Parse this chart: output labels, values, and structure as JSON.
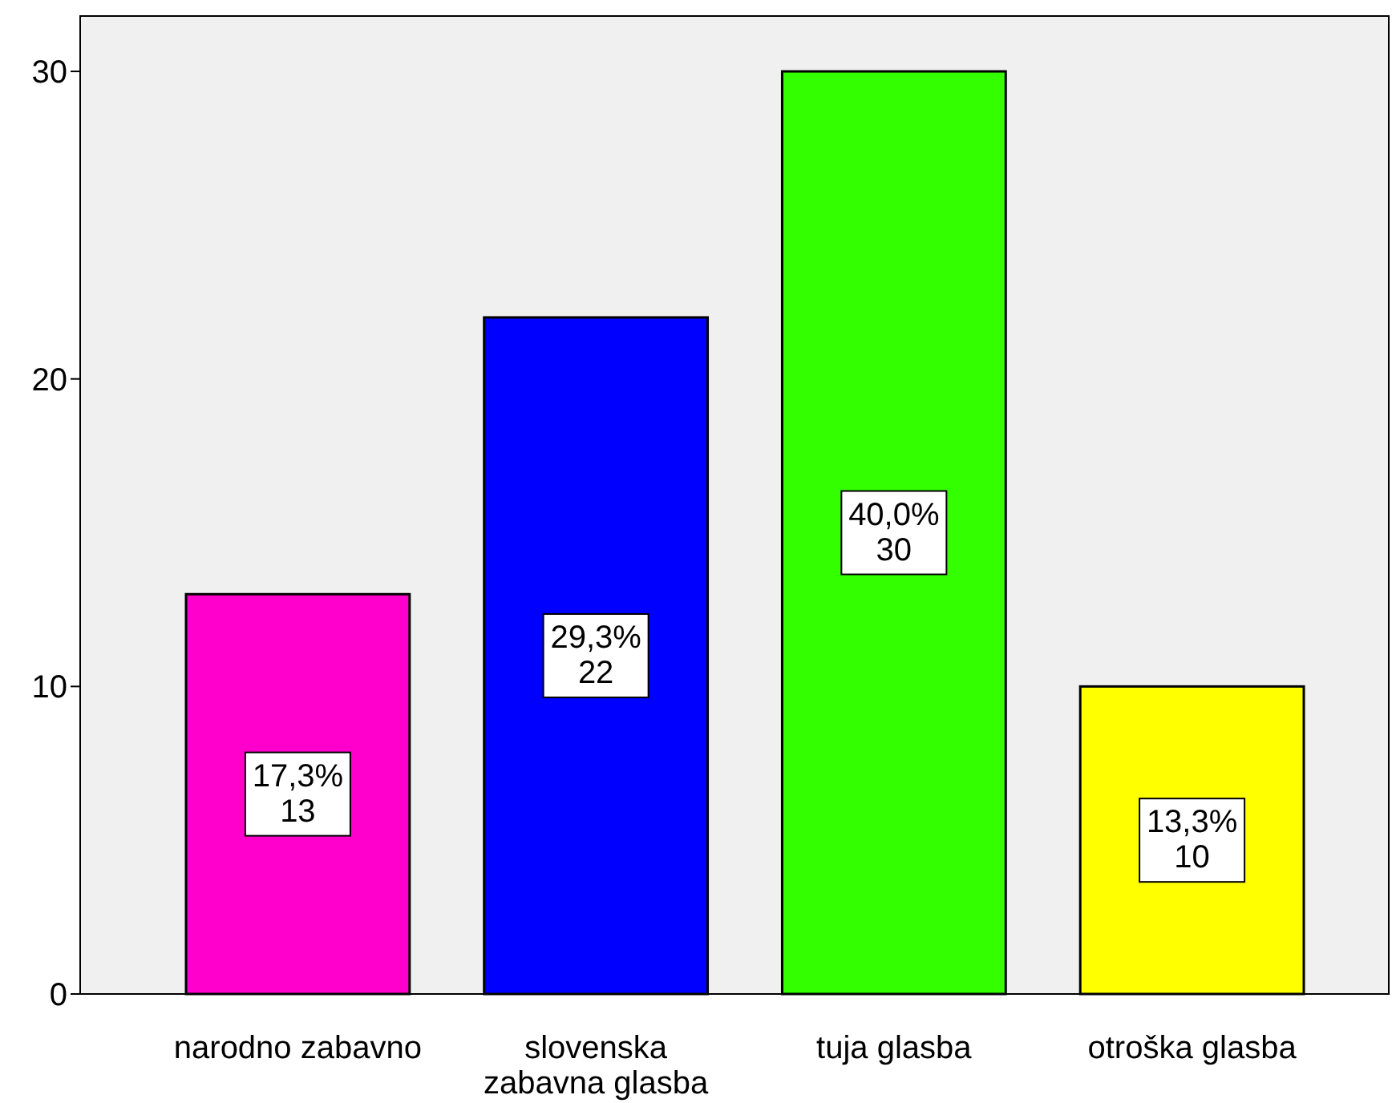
{
  "chart_data": {
    "type": "bar",
    "categories": [
      "narodno zabavno",
      "slovenska\nzabavna glasba",
      "tuja glasba",
      "otroška glasba"
    ],
    "values": [
      13,
      22,
      30,
      10
    ],
    "colors": [
      "#ff00cc",
      "#0000ff",
      "#33ff00",
      "#ffff00"
    ],
    "value_labels": [
      "17,3%\n13",
      "29,3%\n22",
      "40,0%\n30",
      "13,3%\n10"
    ],
    "ylim": [
      0,
      31.8
    ],
    "yticks": [
      0,
      10,
      20,
      30
    ],
    "grid": false
  }
}
